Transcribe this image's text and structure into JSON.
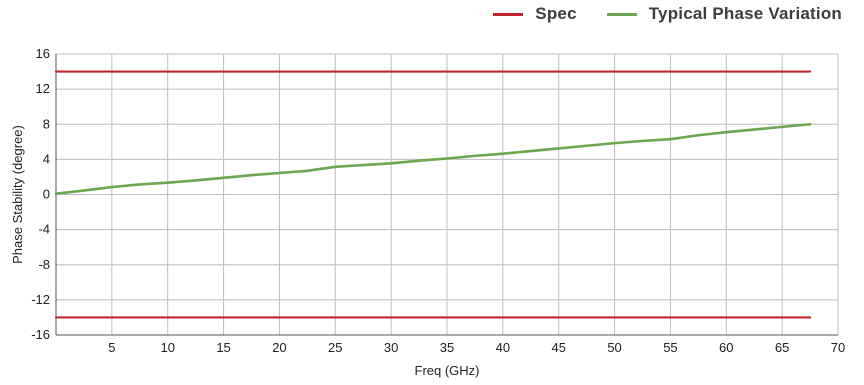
{
  "chart_data": {
    "type": "line",
    "title": "",
    "xlabel": "Freq (GHz)",
    "ylabel": "Phase Stability (degree)",
    "xlim": [
      0,
      70
    ],
    "ylim": [
      -16,
      16
    ],
    "x_ticks": [
      5,
      10,
      15,
      20,
      25,
      30,
      35,
      40,
      45,
      50,
      55,
      60,
      65,
      70
    ],
    "y_ticks": [
      16,
      12,
      8,
      4,
      0,
      -4,
      -8,
      -12,
      -16
    ],
    "grid": true,
    "legend_position": "top-right",
    "series": [
      {
        "name": "Spec",
        "color": "#c0262d",
        "x": [
          0,
          67.5
        ],
        "y": [
          14,
          14
        ]
      },
      {
        "name": "Spec",
        "color": "#c0262d",
        "show_in_legend": false,
        "x": [
          0,
          67.5
        ],
        "y": [
          -14,
          -14
        ]
      },
      {
        "name": "Typical Phase Variation",
        "color": "#6aa84f",
        "x": [
          0,
          2.5,
          5,
          7.5,
          10,
          12.5,
          15,
          17.5,
          20,
          22.5,
          25,
          27.5,
          30,
          32.5,
          35,
          37.5,
          40,
          42.5,
          45,
          47.5,
          50,
          52.5,
          55,
          57.5,
          60,
          62.5,
          65,
          67.5
        ],
        "y": [
          0.1,
          0.45,
          0.85,
          1.15,
          1.35,
          1.6,
          1.9,
          2.2,
          2.45,
          2.7,
          3.15,
          3.35,
          3.55,
          3.85,
          4.1,
          4.4,
          4.65,
          4.95,
          5.25,
          5.55,
          5.85,
          6.1,
          6.3,
          6.75,
          7.1,
          7.4,
          7.7,
          8.0
        ]
      }
    ]
  }
}
